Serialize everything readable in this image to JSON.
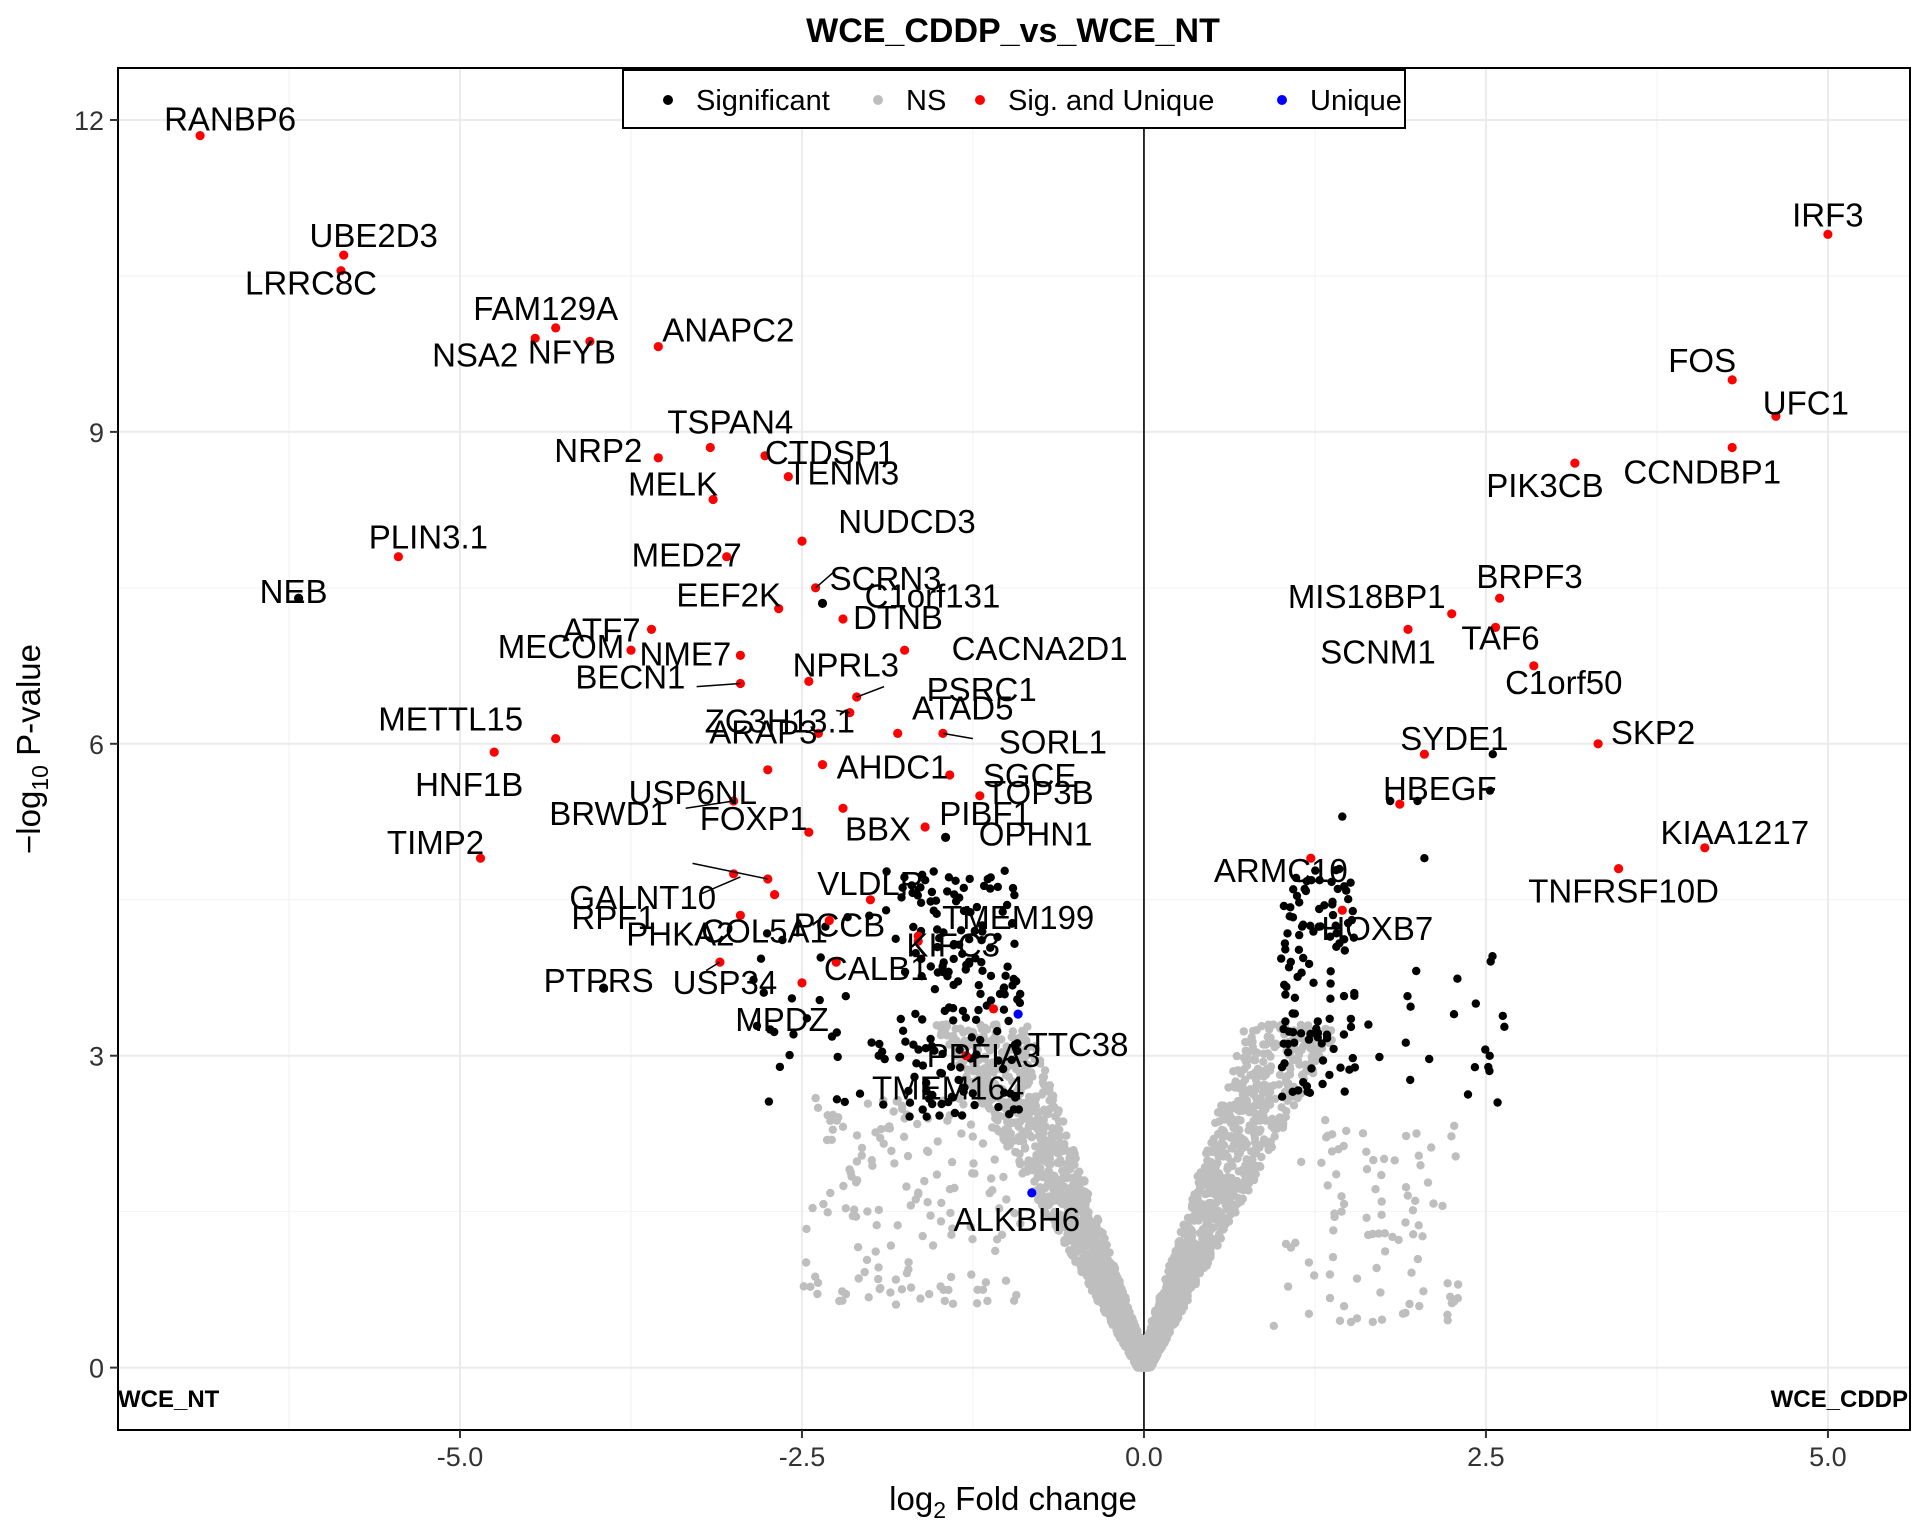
{
  "chart_data": {
    "type": "scatter",
    "title": "WCE_CDDP_vs_WCE_NT",
    "xlabel": "log2 Fold change",
    "ylabel": "-log10 P-value",
    "xlim": [
      -7.5,
      5.6
    ],
    "ylim": [
      -0.6,
      12.5
    ],
    "x_ticks": [
      -5.0,
      -2.5,
      0.0,
      2.5,
      5.0
    ],
    "x_tick_labels": [
      "-5.0",
      "-2.5",
      "0.0",
      "2.5",
      "5.0"
    ],
    "y_ticks": [
      0,
      3,
      6,
      9,
      12
    ],
    "y_tick_labels": [
      "0",
      "3",
      "6",
      "9",
      "12"
    ],
    "grid": true,
    "legend_position": "top-center",
    "legend": [
      {
        "name": "Significant",
        "color": "#000000"
      },
      {
        "name": "NS",
        "color": "#bebebe"
      },
      {
        "name": "Sig. and Unique",
        "color": "#ff0000"
      },
      {
        "name": "Unique",
        "color": "#0000ff"
      }
    ],
    "corner_left_label": "WCE_NT",
    "corner_right_label": "WCE_CDDP",
    "labeled_points": [
      {
        "gene": "RANBP6",
        "x": -6.9,
        "y": 11.85,
        "status": "Sig. and Unique"
      },
      {
        "gene": "UBE2D3",
        "x": -5.85,
        "y": 10.7,
        "status": "Sig. and Unique"
      },
      {
        "gene": "LRRC8C",
        "x": -5.87,
        "y": 10.55,
        "status": "Sig. and Unique"
      },
      {
        "gene": "FAM129A",
        "x": -4.3,
        "y": 10.0,
        "status": "Sig. and Unique"
      },
      {
        "gene": "NSA2",
        "x": -4.45,
        "y": 9.9,
        "status": "Sig. and Unique"
      },
      {
        "gene": "NFYB",
        "x": -4.05,
        "y": 9.87,
        "status": "Sig. and Unique"
      },
      {
        "gene": "ANAPC2",
        "x": -3.55,
        "y": 9.82,
        "status": "Sig. and Unique"
      },
      {
        "gene": "TSPAN4",
        "x": -3.17,
        "y": 8.85,
        "status": "Sig. and Unique"
      },
      {
        "gene": "NRP2",
        "x": -3.55,
        "y": 8.75,
        "status": "Sig. and Unique"
      },
      {
        "gene": "CTDSP1",
        "x": -2.77,
        "y": 8.77,
        "status": "Sig. and Unique"
      },
      {
        "gene": "MELK",
        "x": -3.15,
        "y": 8.35,
        "status": "Sig. and Unique"
      },
      {
        "gene": "TENM3",
        "x": -2.6,
        "y": 8.57,
        "status": "Sig. and Unique"
      },
      {
        "gene": "NUDCD3",
        "x": -2.5,
        "y": 7.95,
        "status": "Sig. and Unique"
      },
      {
        "gene": "PLIN3.1",
        "x": -5.45,
        "y": 7.8,
        "status": "Sig. and Unique"
      },
      {
        "gene": "MED27",
        "x": -3.05,
        "y": 7.8,
        "status": "Sig. and Unique"
      },
      {
        "gene": "SCRN3",
        "x": -2.4,
        "y": 7.5,
        "status": "Sig. and Unique"
      },
      {
        "gene": "C1orf131",
        "x": -2.35,
        "y": 7.35,
        "status": "Significant"
      },
      {
        "gene": "NEB",
        "x": -6.18,
        "y": 7.4,
        "status": "Significant"
      },
      {
        "gene": "EEF2K",
        "x": -2.67,
        "y": 7.3,
        "status": "Sig. and Unique"
      },
      {
        "gene": "DTNB",
        "x": -2.2,
        "y": 7.2,
        "status": "Sig. and Unique"
      },
      {
        "gene": "ATF7",
        "x": -3.6,
        "y": 7.1,
        "status": "Sig. and Unique"
      },
      {
        "gene": "MECOM",
        "x": -3.75,
        "y": 6.9,
        "status": "Sig. and Unique"
      },
      {
        "gene": "NME7",
        "x": -2.95,
        "y": 6.85,
        "status": "Sig. and Unique"
      },
      {
        "gene": "CACNA2D1",
        "x": -1.75,
        "y": 6.9,
        "status": "Sig. and Unique"
      },
      {
        "gene": "NPRL3",
        "x": -2.45,
        "y": 6.6,
        "status": "Sig. and Unique"
      },
      {
        "gene": "BECN1",
        "x": -2.95,
        "y": 6.58,
        "status": "Sig. and Unique"
      },
      {
        "gene": "PSRC1",
        "x": -2.1,
        "y": 6.45,
        "status": "Sig. and Unique"
      },
      {
        "gene": "ZC3H13.1",
        "x": -2.15,
        "y": 6.3,
        "status": "Sig. and Unique"
      },
      {
        "gene": "ATAD5",
        "x": -1.8,
        "y": 6.1,
        "status": "Sig. and Unique"
      },
      {
        "gene": "METTL15",
        "x": -4.3,
        "y": 6.05,
        "status": "Sig. and Unique"
      },
      {
        "gene": "SORL1",
        "x": -1.47,
        "y": 6.1,
        "status": "Sig. and Unique"
      },
      {
        "gene": "ARAP3",
        "x": -2.38,
        "y": 6.1,
        "status": "Sig. and Unique"
      },
      {
        "gene": "AHDC1",
        "x": -2.35,
        "y": 5.8,
        "status": "Sig. and Unique"
      },
      {
        "gene": "HNF1B",
        "x": -4.75,
        "y": 5.92,
        "status": "Sig. and Unique"
      },
      {
        "gene": "SGCE",
        "x": -1.42,
        "y": 5.7,
        "status": "Sig. and Unique"
      },
      {
        "gene": "USP6NL",
        "x": -2.75,
        "y": 5.75,
        "status": "Sig. and Unique"
      },
      {
        "gene": "BBX",
        "x": -2.2,
        "y": 5.38,
        "status": "Sig. and Unique"
      },
      {
        "gene": "TOP3B",
        "x": -1.2,
        "y": 5.5,
        "status": "Sig. and Unique"
      },
      {
        "gene": "BRWD1",
        "x": -3.0,
        "y": 5.45,
        "status": "Sig. and Unique"
      },
      {
        "gene": "FOXP1",
        "x": -2.45,
        "y": 5.15,
        "status": "Sig. and Unique"
      },
      {
        "gene": "PIBF1",
        "x": -1.6,
        "y": 5.2,
        "status": "Sig. and Unique"
      },
      {
        "gene": "OPHN1",
        "x": -1.45,
        "y": 5.1,
        "status": "Significant"
      },
      {
        "gene": "TIMP2",
        "x": -4.85,
        "y": 4.9,
        "status": "Sig. and Unique"
      },
      {
        "gene": "GALNT10",
        "x": -2.75,
        "y": 4.7,
        "status": "Sig. and Unique"
      },
      {
        "gene": "VLDLR",
        "x": -2.0,
        "y": 4.5,
        "status": "Sig. and Unique"
      },
      {
        "gene": "RPF1",
        "x": -3.0,
        "y": 4.75,
        "status": "Sig. and Unique"
      },
      {
        "gene": "COL5A1",
        "x": -2.7,
        "y": 4.55,
        "status": "Sig. and Unique"
      },
      {
        "gene": "TMEM199",
        "x": -1.65,
        "y": 4.15,
        "status": "Sig. and Unique"
      },
      {
        "gene": "PCCB",
        "x": -2.3,
        "y": 4.3,
        "status": "Sig. and Unique"
      },
      {
        "gene": "PHKA2",
        "x": -2.95,
        "y": 4.35,
        "status": "Sig. and Unique"
      },
      {
        "gene": "KIFC3",
        "x": -1.65,
        "y": 4.1,
        "status": "Sig. and Unique"
      },
      {
        "gene": "PTPRS",
        "x": -3.95,
        "y": 3.65,
        "status": "Significant"
      },
      {
        "gene": "USP34",
        "x": -3.1,
        "y": 3.9,
        "status": "Sig. and Unique"
      },
      {
        "gene": "CALB1",
        "x": -2.25,
        "y": 3.9,
        "status": "Sig. and Unique"
      },
      {
        "gene": "MPDZ",
        "x": -2.5,
        "y": 3.7,
        "status": "Sig. and Unique"
      },
      {
        "gene": "PPFIA3",
        "x": -1.1,
        "y": 3.45,
        "status": "Sig. and Unique"
      },
      {
        "gene": "TTC38",
        "x": -0.92,
        "y": 3.4,
        "status": "Unique"
      },
      {
        "gene": "TMEM164",
        "x": -1.3,
        "y": 3.0,
        "status": "Sig. and Unique"
      },
      {
        "gene": "ALKBH6",
        "x": -0.82,
        "y": 1.68,
        "status": "Unique"
      },
      {
        "gene": "IRF3",
        "x": 5.0,
        "y": 10.9,
        "status": "Sig. and Unique"
      },
      {
        "gene": "FOS",
        "x": 4.3,
        "y": 9.5,
        "status": "Sig. and Unique"
      },
      {
        "gene": "UFC1",
        "x": 4.62,
        "y": 9.15,
        "status": "Sig. and Unique"
      },
      {
        "gene": "PIK3CB",
        "x": 3.15,
        "y": 8.7,
        "status": "Sig. and Unique"
      },
      {
        "gene": "CCNDBP1",
        "x": 4.3,
        "y": 8.85,
        "status": "Sig. and Unique"
      },
      {
        "gene": "MIS18BP1",
        "x": 2.25,
        "y": 7.25,
        "status": "Sig. and Unique"
      },
      {
        "gene": "BRPF3",
        "x": 2.6,
        "y": 7.4,
        "status": "Sig. and Unique"
      },
      {
        "gene": "SCNM1",
        "x": 1.93,
        "y": 7.1,
        "status": "Sig. and Unique"
      },
      {
        "gene": "TAF6",
        "x": 2.57,
        "y": 7.12,
        "status": "Sig. and Unique"
      },
      {
        "gene": "C1orf50",
        "x": 2.85,
        "y": 6.75,
        "status": "Sig. and Unique"
      },
      {
        "gene": "SYDE1",
        "x": 2.05,
        "y": 5.9,
        "status": "Sig. and Unique"
      },
      {
        "gene": "SKP2",
        "x": 3.32,
        "y": 6.0,
        "status": "Sig. and Unique"
      },
      {
        "gene": "HBEGF",
        "x": 1.87,
        "y": 5.42,
        "status": "Sig. and Unique"
      },
      {
        "gene": "KIAA1217",
        "x": 4.1,
        "y": 5.0,
        "status": "Sig. and Unique"
      },
      {
        "gene": "TNFRSF10D",
        "x": 3.47,
        "y": 4.8,
        "status": "Sig. and Unique"
      },
      {
        "gene": "ARMC10",
        "x": 1.22,
        "y": 4.9,
        "status": "Sig. and Unique"
      },
      {
        "gene": "HOXB7",
        "x": 1.45,
        "y": 4.4,
        "status": "Sig. and Unique"
      }
    ]
  }
}
